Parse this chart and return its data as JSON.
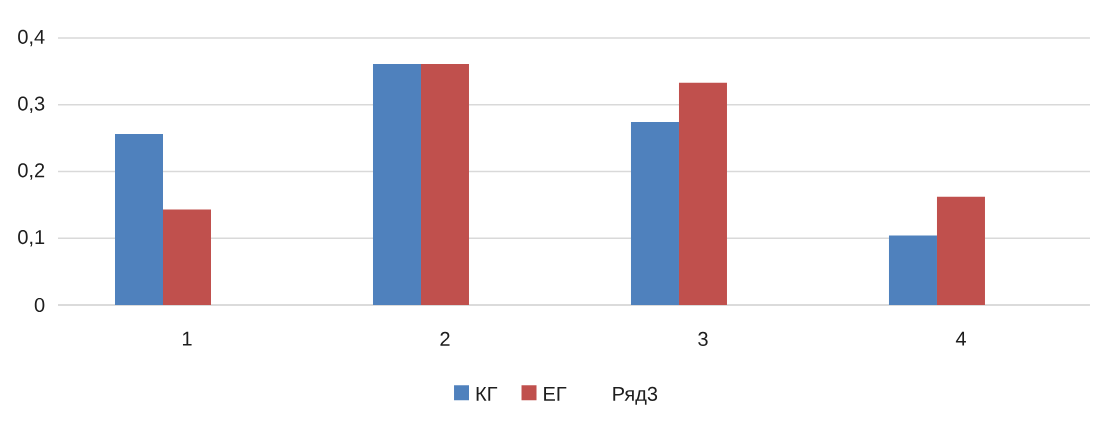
{
  "chart_data": {
    "type": "bar",
    "categories": [
      "1",
      "2",
      "3",
      "4"
    ],
    "series": [
      {
        "name": "КГ",
        "color": "#4f81bd",
        "values": [
          0.256,
          0.361,
          0.274,
          0.104
        ]
      },
      {
        "name": "ЕГ",
        "color": "#c0504d",
        "values": [
          0.143,
          0.361,
          0.333,
          0.162
        ]
      },
      {
        "name": "Ряд3",
        "values": [
          null,
          null,
          null,
          null
        ]
      }
    ],
    "ylim": [
      0,
      0.4
    ],
    "yticks": [
      0,
      {
        "value": 0.1,
        "label": "0,1"
      },
      {
        "value": 0.2,
        "label": "0,2"
      },
      {
        "value": 0.3,
        "label": "0,3"
      },
      {
        "value": 0.4,
        "label": "0,4"
      }
    ],
    "grid": "y",
    "legend": "bottom"
  }
}
